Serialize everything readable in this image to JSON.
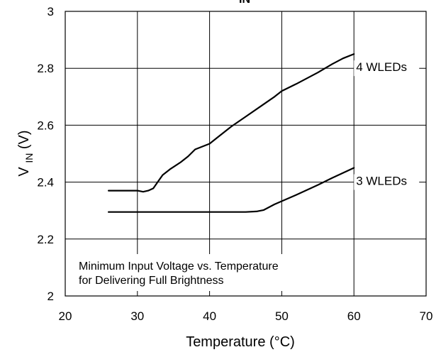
{
  "chart_data": {
    "type": "line",
    "title": "Vᵢₙ vs Temperature",
    "title_visible_text": "IN",
    "xlabel": "Temperature",
    "xlabel_unit": "(°C)",
    "ylabel_main": "V",
    "ylabel_sub": "IN",
    "ylabel_unit": "(V)",
    "xlim": [
      20,
      70
    ],
    "ylim": [
      2,
      3
    ],
    "xticks": [
      "20",
      "30",
      "40",
      "50",
      "60",
      "70"
    ],
    "yticks": [
      "2",
      "2.2",
      "2.4",
      "2.6",
      "2.8",
      "3"
    ],
    "grid": true,
    "annotation": [
      "Minimum Input Voltage vs. Temperature",
      "for Delivering Full Brightness"
    ],
    "series": [
      {
        "name": "4 WLEDs",
        "x": [
          26,
          28,
          30,
          30.8,
          31.5,
          32.2,
          32.8,
          33.5,
          34.5,
          36,
          37,
          38,
          39,
          40,
          41,
          43,
          45,
          47,
          49,
          50,
          52,
          55,
          57,
          58.5,
          60
        ],
        "y": [
          2.37,
          2.37,
          2.37,
          2.366,
          2.37,
          2.378,
          2.4,
          2.425,
          2.445,
          2.47,
          2.49,
          2.515,
          2.525,
          2.535,
          2.555,
          2.595,
          2.63,
          2.665,
          2.7,
          2.72,
          2.745,
          2.785,
          2.815,
          2.835,
          2.85
        ]
      },
      {
        "name": "3 WLEDs",
        "x": [
          26,
          30,
          35,
          40,
          45,
          46.5,
          47.5,
          49,
          52,
          55,
          57,
          60
        ],
        "y": [
          2.295,
          2.295,
          2.295,
          2.295,
          2.295,
          2.297,
          2.302,
          2.322,
          2.355,
          2.39,
          2.415,
          2.45
        ]
      }
    ]
  }
}
